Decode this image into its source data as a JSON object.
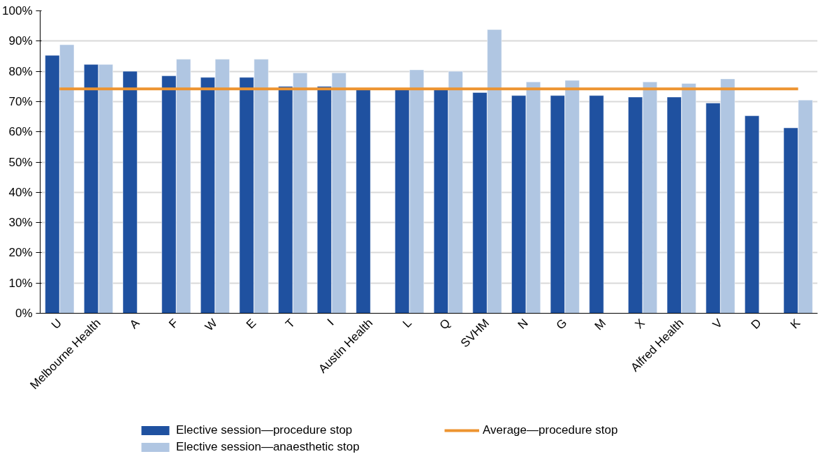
{
  "chart_data": {
    "type": "bar",
    "categories": [
      "U",
      "Melbourne Health",
      "A",
      "F",
      "W",
      "E",
      "T",
      "I",
      "Austin Health",
      "L",
      "Q",
      "SVHM",
      "N",
      "G",
      "M",
      "X",
      "Alfred Health",
      "V",
      "D",
      "K"
    ],
    "series": [
      {
        "name": "Elective session—procedure stop",
        "color": "#1f51a0",
        "values": [
          85.3,
          82.3,
          80,
          78.5,
          78,
          78,
          75,
          75,
          74.5,
          74,
          74,
          73,
          72,
          72,
          72,
          71.5,
          71.5,
          69.5,
          65.3,
          61.3
        ]
      },
      {
        "name": "Elective session—anaesthetic stop",
        "color": "#b0c6e2",
        "values": [
          88.8,
          82.3,
          null,
          84,
          84,
          84,
          79.5,
          79.5,
          null,
          80.5,
          80,
          93.8,
          76.5,
          77,
          null,
          76.5,
          76,
          77.5,
          null,
          70.5
        ]
      },
      {
        "name": "Average—procedure stop",
        "type": "line",
        "color": "#ed9430",
        "values": [
          74.2,
          74.2,
          74.2,
          74.2,
          74.2,
          74.2,
          74.2,
          74.2,
          74.2,
          74.2,
          74.2,
          74.2,
          74.2,
          74.2,
          74.2,
          74.2,
          74.2,
          74.2,
          74.2,
          74.2
        ]
      }
    ],
    "ylim": [
      0,
      100
    ],
    "yticks": [
      {
        "value": 0,
        "label": "0%"
      },
      {
        "value": 10,
        "label": "10%"
      },
      {
        "value": 20,
        "label": "20%"
      },
      {
        "value": 30,
        "label": "30%"
      },
      {
        "value": 40,
        "label": "40%"
      },
      {
        "value": 50,
        "label": "50%"
      },
      {
        "value": 60,
        "label": "60%"
      },
      {
        "value": 70,
        "label": "70%"
      },
      {
        "value": 80,
        "label": "80%"
      },
      {
        "value": 90,
        "label": "90%"
      },
      {
        "value": 100,
        "label": "100%"
      }
    ],
    "grid": "y",
    "legend": "bottom"
  }
}
